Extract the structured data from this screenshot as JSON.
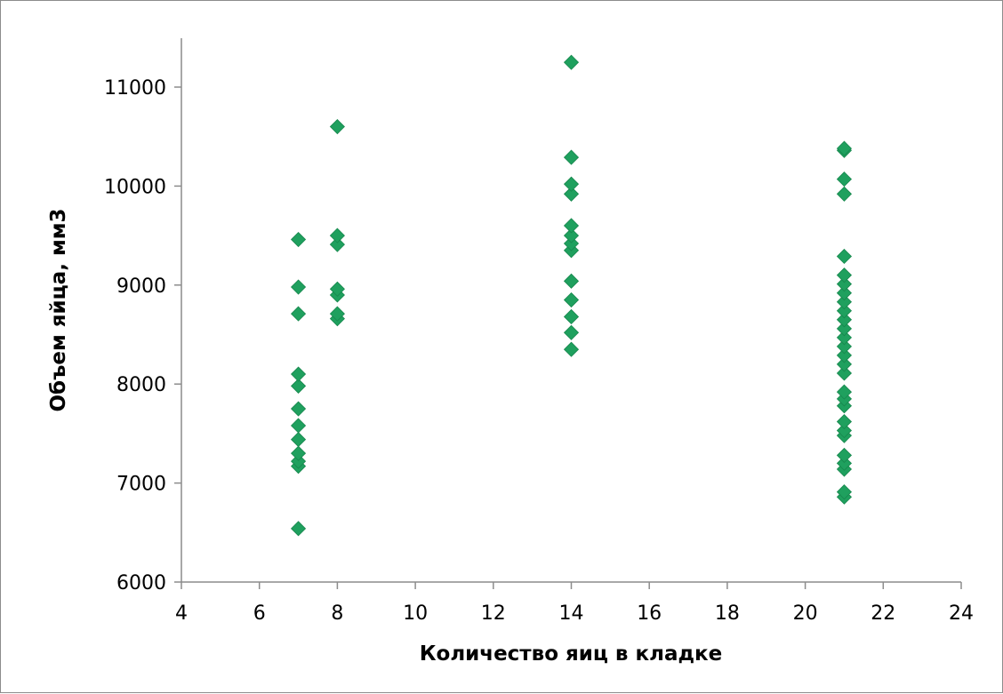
{
  "chart_data": {
    "type": "scatter",
    "title": "",
    "xlabel": "Количество яиц в кладке",
    "ylabel": "Объем  яйца, мм3",
    "xlim": [
      4,
      24
    ],
    "ylim": [
      6000,
      11500
    ],
    "x_ticks": [
      4,
      6,
      8,
      10,
      12,
      14,
      16,
      18,
      20,
      22,
      24
    ],
    "y_ticks": [
      6000,
      7000,
      8000,
      9000,
      10000,
      11000
    ],
    "grid": false,
    "legend": "none",
    "marker": "diamond",
    "marker_color": "#1fa05e",
    "series": [
      {
        "points": [
          {
            "x": 7,
            "y": 6540
          },
          {
            "x": 7,
            "y": 7170
          },
          {
            "x": 7,
            "y": 7220
          },
          {
            "x": 7,
            "y": 7300
          },
          {
            "x": 7,
            "y": 7440
          },
          {
            "x": 7,
            "y": 7580
          },
          {
            "x": 7,
            "y": 7750
          },
          {
            "x": 7,
            "y": 7980
          },
          {
            "x": 7,
            "y": 8100
          },
          {
            "x": 7,
            "y": 8710
          },
          {
            "x": 7,
            "y": 8980
          },
          {
            "x": 7,
            "y": 9460
          },
          {
            "x": 8,
            "y": 8660
          },
          {
            "x": 8,
            "y": 8710
          },
          {
            "x": 8,
            "y": 8900
          },
          {
            "x": 8,
            "y": 8960
          },
          {
            "x": 8,
            "y": 9410
          },
          {
            "x": 8,
            "y": 9500
          },
          {
            "x": 8,
            "y": 10600
          },
          {
            "x": 14,
            "y": 8350
          },
          {
            "x": 14,
            "y": 8520
          },
          {
            "x": 14,
            "y": 8680
          },
          {
            "x": 14,
            "y": 8850
          },
          {
            "x": 14,
            "y": 9040
          },
          {
            "x": 14,
            "y": 9350
          },
          {
            "x": 14,
            "y": 9420
          },
          {
            "x": 14,
            "y": 9500
          },
          {
            "x": 14,
            "y": 9600
          },
          {
            "x": 14,
            "y": 9920
          },
          {
            "x": 14,
            "y": 10020
          },
          {
            "x": 14,
            "y": 10290
          },
          {
            "x": 14,
            "y": 11250
          },
          {
            "x": 21,
            "y": 6860
          },
          {
            "x": 21,
            "y": 6910
          },
          {
            "x": 21,
            "y": 7140
          },
          {
            "x": 21,
            "y": 7200
          },
          {
            "x": 21,
            "y": 7280
          },
          {
            "x": 21,
            "y": 7480
          },
          {
            "x": 21,
            "y": 7530
          },
          {
            "x": 21,
            "y": 7620
          },
          {
            "x": 21,
            "y": 7780
          },
          {
            "x": 21,
            "y": 7850
          },
          {
            "x": 21,
            "y": 7920
          },
          {
            "x": 21,
            "y": 8110
          },
          {
            "x": 21,
            "y": 8200
          },
          {
            "x": 21,
            "y": 8290
          },
          {
            "x": 21,
            "y": 8380
          },
          {
            "x": 21,
            "y": 8470
          },
          {
            "x": 21,
            "y": 8560
          },
          {
            "x": 21,
            "y": 8650
          },
          {
            "x": 21,
            "y": 8740
          },
          {
            "x": 21,
            "y": 8830
          },
          {
            "x": 21,
            "y": 8920
          },
          {
            "x": 21,
            "y": 9010
          },
          {
            "x": 21,
            "y": 9100
          },
          {
            "x": 21,
            "y": 9290
          },
          {
            "x": 21,
            "y": 9920
          },
          {
            "x": 21,
            "y": 10070
          },
          {
            "x": 21,
            "y": 10360
          },
          {
            "x": 21,
            "y": 10380
          }
        ]
      }
    ]
  }
}
